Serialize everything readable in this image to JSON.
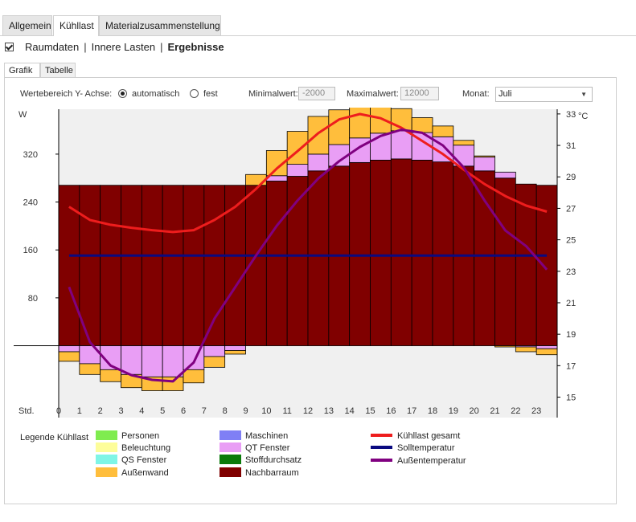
{
  "top_tabs": [
    "Allgemein",
    "Kühllast",
    "Materialzusammenstellung"
  ],
  "subnav": {
    "items": [
      "Raumdaten",
      "Innere Lasten",
      "Ergebnisse"
    ]
  },
  "inner_tabs": [
    "Grafik",
    "Tabelle"
  ],
  "controls": {
    "y_range_label": "Wertebereich Y- Achse:",
    "auto_label": "automatisch",
    "fixed_label": "fest",
    "min_label": "Minimalwert:",
    "min_value": "-2000",
    "max_label": "Maximalwert:",
    "max_value": "12000",
    "month_label": "Monat:",
    "month_value": "Juli"
  },
  "colors": {
    "personen": "#7fec4f",
    "beleuchtung": "#fdfd9a",
    "qs_fenster": "#7ff5e6",
    "aussenwand": "#ffbe3c",
    "maschinen": "#7f7ff5",
    "qt_fenster": "#e99ef5",
    "stoffdurchsatz": "#0a7a0a",
    "nachbarraum": "#800000",
    "kuehllast_gesamt": "#ee1d1d",
    "solltemperatur": "#0a0a80",
    "aussentemperatur": "#800080"
  },
  "legend": {
    "title": "Legende Kühllast",
    "items": {
      "personen": "Personen",
      "beleuchtung": "Beleuchtung",
      "qs_fenster": "QS Fenster",
      "aussenwand": "Außenwand",
      "maschinen": "Maschinen",
      "qt_fenster": "QT Fenster",
      "stoffdurchsatz": "Stoffdurchsatz",
      "nachbarraum": "Nachbarraum",
      "kuehllast_gesamt": "Kühllast gesamt",
      "solltemperatur": "Solltemperatur",
      "aussentemperatur": "Außentemperatur"
    }
  },
  "chart_data": {
    "type": "bar",
    "ylabel": "W",
    "y2label": "°C",
    "xlabel": "Std.",
    "ylim": [
      -120,
      395
    ],
    "y2lim": [
      13.7,
      33.3
    ],
    "y_ticks": [
      80,
      160,
      240,
      320
    ],
    "y2_ticks": [
      15,
      17,
      19,
      21,
      23,
      25,
      27,
      29,
      31,
      33
    ],
    "x_ticks": [
      0,
      1,
      2,
      3,
      4,
      5,
      6,
      7,
      8,
      9,
      10,
      11,
      12,
      13,
      14,
      15,
      16,
      17,
      18,
      19,
      20,
      21,
      22,
      23
    ],
    "categories": [
      0,
      1,
      2,
      3,
      4,
      5,
      6,
      7,
      8,
      9,
      10,
      11,
      12,
      13,
      14,
      15,
      16,
      17,
      18,
      19,
      20,
      21,
      22,
      23
    ],
    "series": [
      {
        "name": "Nachbarraum",
        "values": [
          268,
          268,
          268,
          268,
          268,
          268,
          268,
          268,
          268,
          268,
          275,
          283,
          292,
          300,
          306,
          310,
          312,
          310,
          307,
          300,
          292,
          280,
          270,
          268
        ]
      },
      {
        "name": "QT Fenster",
        "values": [
          -10,
          -30,
          -40,
          -48,
          -52,
          -52,
          -40,
          -18,
          -8,
          0,
          9,
          20,
          28,
          36,
          41,
          45,
          47,
          46,
          42,
          35,
          23,
          10,
          -2,
          -5
        ]
      },
      {
        "name": "Außenwand",
        "values": [
          -16,
          -18,
          -20,
          -22,
          -23,
          -23,
          -22,
          -18,
          -6,
          18,
          42,
          55,
          63,
          58,
          52,
          46,
          37,
          25,
          18,
          8,
          2,
          -2,
          -8,
          -10
        ]
      }
    ],
    "lines": [
      {
        "name": "Kühllast gesamt",
        "axis": "left",
        "values": [
          232,
          210,
          202,
          197,
          193,
          190,
          193,
          210,
          232,
          262,
          296,
          325,
          355,
          378,
          387,
          380,
          364,
          342,
          320,
          294,
          270,
          250,
          234,
          224
        ]
      },
      {
        "name": "Solltemperatur",
        "axis": "right",
        "values": [
          24,
          24,
          24,
          24,
          24,
          24,
          24,
          24,
          24,
          24,
          24,
          24,
          24,
          24,
          24,
          24,
          24,
          24,
          24,
          24,
          24,
          24,
          24,
          24
        ]
      },
      {
        "name": "Außentemperatur",
        "axis": "right",
        "values": [
          22.0,
          18.5,
          17.0,
          16.4,
          16.1,
          16.0,
          17.2,
          20.0,
          22.0,
          24.0,
          25.9,
          27.5,
          28.9,
          30.0,
          30.9,
          31.6,
          32.0,
          31.8,
          31.0,
          29.6,
          27.5,
          25.6,
          24.6,
          23.1
        ]
      }
    ]
  }
}
